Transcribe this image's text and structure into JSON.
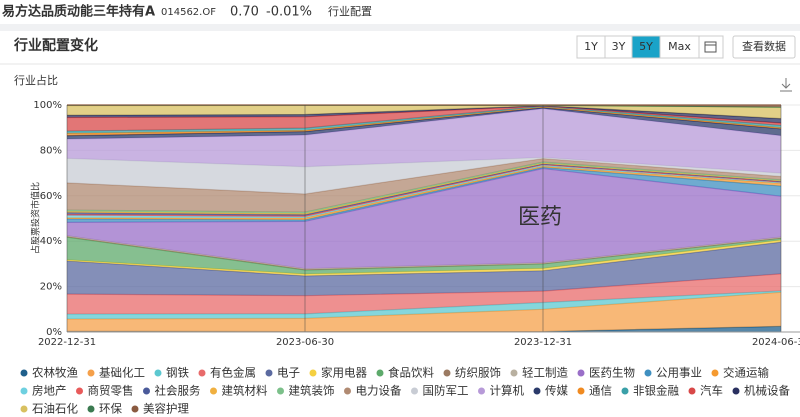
{
  "header": {
    "fund_name": "易方达品质动能三年持有A",
    "code": "014562.OF",
    "nav": "0.70",
    "change": "-0.01%",
    "tab": "行业配置"
  },
  "panel": {
    "title": "行业配置变化",
    "ranges": [
      "1Y",
      "3Y",
      "5Y",
      "Max"
    ],
    "active_range": "5Y",
    "view_data": "查看数据"
  },
  "chart_data": {
    "type": "stacked-area",
    "subtitle": "行业占比",
    "y_label": "占股票投资市值比",
    "annotation": "医药",
    "categories": [
      "2022-12-31",
      "2023-06-30",
      "2023-12-31",
      "2024-06-30"
    ],
    "ylim": [
      0,
      100
    ],
    "yticks": [
      {
        "value": 0,
        "label": "0%"
      },
      {
        "value": 20,
        "label": "20%"
      },
      {
        "value": 40,
        "label": "40%"
      },
      {
        "value": 60,
        "label": "60%"
      },
      {
        "value": 80,
        "label": "80%"
      },
      {
        "value": 100,
        "label": "100%"
      }
    ],
    "grid": true,
    "series": [
      {
        "name": "农林牧渔",
        "color": "#1f5f8b",
        "values": [
          0.3,
          0.2,
          0.2,
          2.5
        ]
      },
      {
        "name": "基础化工",
        "color": "#f5a04a",
        "values": [
          5.4,
          5.8,
          9.8,
          15
        ]
      },
      {
        "name": "钢铁",
        "color": "#5cc8d0",
        "values": [
          2.2,
          2,
          3,
          0.6
        ]
      },
      {
        "name": "有色金属",
        "color": "#e86b6b",
        "values": [
          8.8,
          8,
          5,
          7.5
        ]
      },
      {
        "name": "电子",
        "color": "#5b6aa0",
        "values": [
          14.6,
          8.7,
          9,
          14
        ]
      },
      {
        "name": "家用电器",
        "color": "#f5d040",
        "values": [
          0.5,
          0.8,
          1,
          0.9
        ]
      },
      {
        "name": "食品饮料",
        "color": "#5daa6b",
        "values": [
          10,
          1.8,
          2,
          0.8
        ]
      },
      {
        "name": "纺织服饰",
        "color": "#9b7a62",
        "values": [
          0.3,
          0.3,
          0.2,
          0.2
        ]
      },
      {
        "name": "轻工制造",
        "color": "#b8b0a0",
        "values": [
          0.3,
          0.3,
          0.3,
          0.3
        ]
      },
      {
        "name": "医药生物",
        "color": "#9a6fc8",
        "values": [
          5.9,
          20.8,
          41.5,
          18
        ]
      },
      {
        "name": "公用事业",
        "color": "#3f8fc0",
        "values": [
          1.5,
          0.7,
          0.5,
          4.5
        ]
      },
      {
        "name": "交通运输",
        "color": "#f59a30",
        "values": [
          0.5,
          0.8,
          0.5,
          1.2
        ]
      },
      {
        "name": "房地产",
        "color": "#6ed0e0",
        "values": [
          1,
          0.5,
          0.5,
          0.3
        ]
      },
      {
        "name": "商贸零售",
        "color": "#e85a5a",
        "values": [
          0.5,
          0.5,
          0.3,
          0.3
        ]
      },
      {
        "name": "社会服务",
        "color": "#4a5a9a",
        "values": [
          0.8,
          0.5,
          0.3,
          0.3
        ]
      },
      {
        "name": "建筑材料",
        "color": "#f0b040",
        "values": [
          0.5,
          0.5,
          0.3,
          0.3
        ]
      },
      {
        "name": "建筑装饰",
        "color": "#7cc08a",
        "values": [
          0.6,
          0.6,
          0.5,
          0.3
        ]
      },
      {
        "name": "电力设备",
        "color": "#b08a72",
        "values": [
          12,
          8,
          1.5,
          1.5
        ]
      },
      {
        "name": "国防军工",
        "color": "#c8ccd4",
        "values": [
          10.8,
          12,
          0.5,
          1.5
        ]
      },
      {
        "name": "计算机",
        "color": "#b79ad8",
        "values": [
          8.5,
          14,
          21.5,
          16.5
        ]
      },
      {
        "name": "传媒",
        "color": "#2a3a6a",
        "values": [
          1.5,
          1.5,
          0.5,
          3
        ]
      },
      {
        "name": "通信",
        "color": "#f08a20",
        "values": [
          1,
          0.5,
          0.3,
          0.5
        ]
      },
      {
        "name": "非银金融",
        "color": "#3aa0a8",
        "values": [
          1,
          1,
          0.3,
          1
        ]
      },
      {
        "name": "汽车",
        "color": "#d84848",
        "values": [
          6,
          5,
          0.1,
          1
        ]
      },
      {
        "name": "机械设备",
        "color": "#2a3060",
        "values": [
          1,
          1,
          0.1,
          2
        ]
      },
      {
        "name": "石油石化",
        "color": "#d8c060",
        "values": [
          4.2,
          4,
          0.1,
          5
        ]
      },
      {
        "name": "环保",
        "color": "#3a7a50",
        "values": [
          0.2,
          0.1,
          0.1,
          0.1
        ]
      },
      {
        "name": "美容护理",
        "color": "#8a5a40",
        "values": [
          0.1,
          0.1,
          0.1,
          0.9
        ]
      }
    ]
  }
}
